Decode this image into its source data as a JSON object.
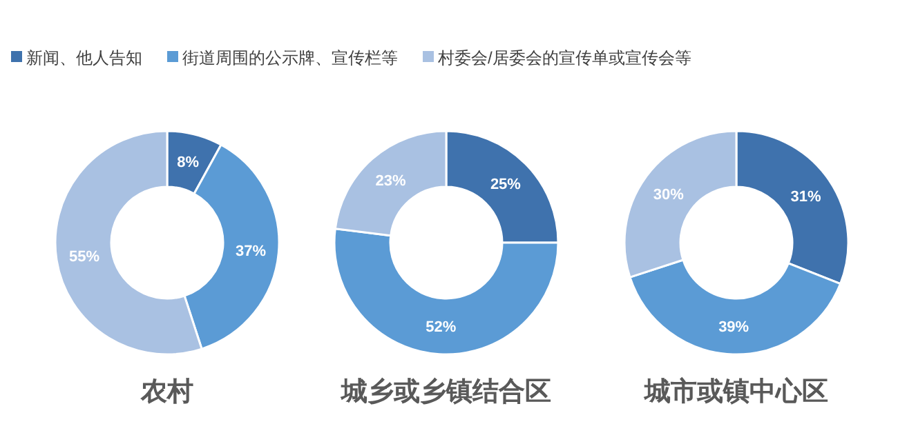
{
  "chart_data": [
    {
      "type": "donut",
      "title": "农村",
      "categories": [
        "新闻、他人告知",
        "街道周围的公示牌、宣传栏等",
        "村委会/居委会的宣传单或宣传会等"
      ],
      "values": [
        8,
        37,
        55
      ],
      "value_labels": [
        "8%",
        "37%",
        "55%"
      ],
      "colors": [
        "#3f72ad",
        "#5b9bd5",
        "#a9c1e2"
      ],
      "legend": "top"
    },
    {
      "type": "donut",
      "title": "城乡或乡镇结合区",
      "categories": [
        null,
        null,
        null
      ],
      "values": [
        25,
        52,
        23
      ],
      "value_labels": [
        "25%",
        "52%",
        "23%"
      ],
      "colors": [
        "#3f72ad",
        "#5b9bd5",
        "#a9c1e2"
      ]
    },
    {
      "type": "donut",
      "title": "城市或镇中心区",
      "categories": [
        null,
        null,
        null
      ],
      "values": [
        31,
        39,
        30
      ],
      "value_labels": [
        "31%",
        "39%",
        "30%"
      ],
      "colors": [
        "#3f72ad",
        "#5b9bd5",
        "#a9c1e2"
      ]
    }
  ]
}
